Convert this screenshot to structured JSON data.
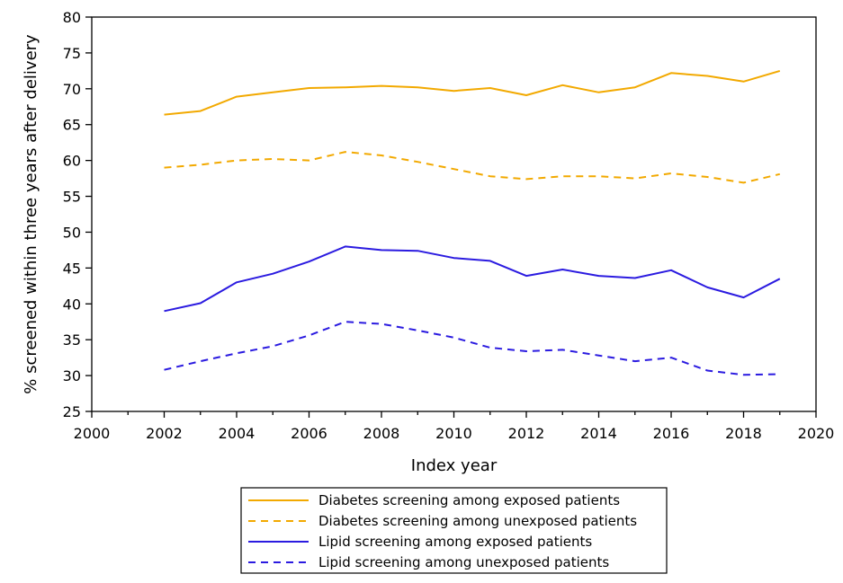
{
  "chart_data": {
    "type": "line",
    "title": "",
    "xlabel": "Index year",
    "ylabel": "% screened within three years after delivery",
    "xlim": [
      2000,
      2020
    ],
    "ylim": [
      25,
      80
    ],
    "xticks": [
      2000,
      2002,
      2004,
      2006,
      2008,
      2010,
      2012,
      2014,
      2016,
      2018,
      2020
    ],
    "yticks": [
      25,
      30,
      35,
      40,
      45,
      50,
      55,
      60,
      65,
      70,
      75,
      80
    ],
    "grid": false,
    "legend_position": "bottom",
    "x": [
      2002,
      2003,
      2004,
      2005,
      2006,
      2007,
      2008,
      2009,
      2010,
      2011,
      2012,
      2013,
      2014,
      2015,
      2016,
      2017,
      2018,
      2019
    ],
    "series": [
      {
        "name": "Diabetes screening among exposed patients",
        "color": "#F2A900",
        "dash": "solid",
        "values": [
          66.4,
          66.9,
          68.9,
          69.5,
          70.1,
          70.2,
          70.4,
          70.2,
          69.7,
          70.1,
          69.1,
          70.5,
          69.5,
          70.2,
          72.2,
          71.8,
          71.0,
          72.5
        ]
      },
      {
        "name": "Diabetes screening among unexposed patients",
        "color": "#F2A900",
        "dash": "dashed",
        "values": [
          59.0,
          59.4,
          60.0,
          60.2,
          60.0,
          61.2,
          60.7,
          59.8,
          58.8,
          57.8,
          57.4,
          57.8,
          57.8,
          57.5,
          58.2,
          57.7,
          56.9,
          58.1
        ]
      },
      {
        "name": "Lipid screening among exposed patients",
        "color": "#2B1BE0",
        "dash": "solid",
        "values": [
          39.0,
          40.1,
          43.0,
          44.2,
          45.9,
          48.0,
          47.5,
          47.4,
          46.4,
          46.0,
          43.9,
          44.8,
          43.9,
          43.6,
          44.7,
          42.3,
          40.9,
          43.5
        ]
      },
      {
        "name": "Lipid screening among unexposed patients",
        "color": "#2B1BE0",
        "dash": "dashed",
        "values": [
          30.8,
          32.0,
          33.1,
          34.1,
          35.6,
          37.5,
          37.2,
          36.3,
          35.3,
          33.9,
          33.4,
          33.6,
          32.8,
          32.0,
          32.5,
          30.7,
          30.1,
          30.2
        ]
      }
    ]
  }
}
